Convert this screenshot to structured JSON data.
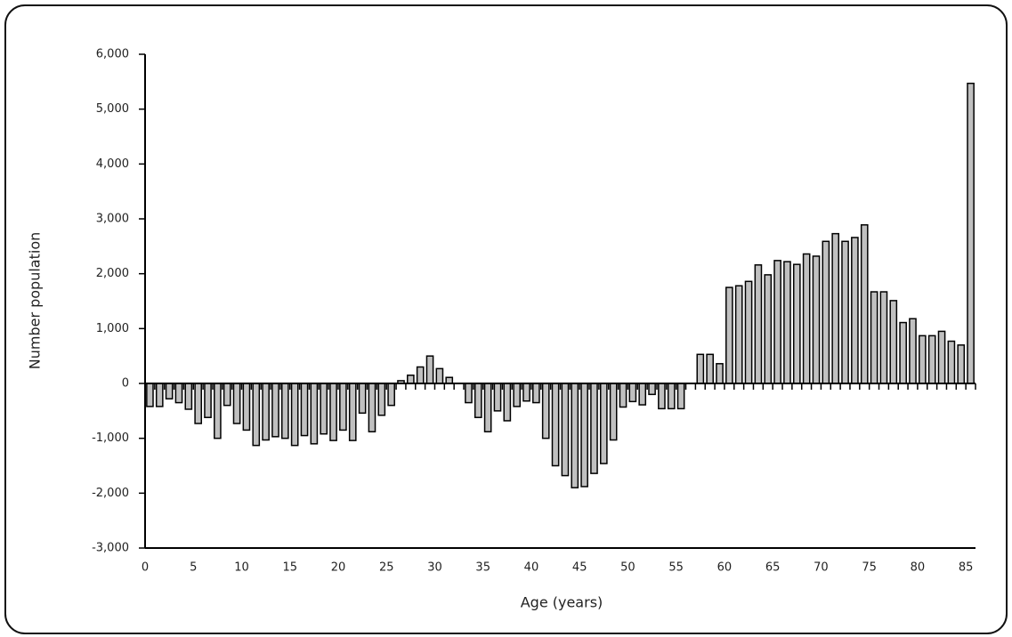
{
  "chart_data": {
    "type": "bar",
    "x_label": "Age (years)",
    "y_label": "Number population",
    "categories": [
      0,
      null,
      null,
      null,
      null,
      5,
      null,
      null,
      null,
      null,
      10,
      null,
      null,
      null,
      null,
      15,
      null,
      null,
      null,
      null,
      20,
      null,
      null,
      null,
      null,
      25,
      null,
      null,
      null,
      null,
      30,
      null,
      null,
      null,
      null,
      35,
      null,
      null,
      null,
      null,
      40,
      null,
      null,
      null,
      null,
      45,
      null,
      null,
      null,
      null,
      50,
      null,
      null,
      null,
      null,
      55,
      null,
      null,
      null,
      null,
      60,
      null,
      null,
      null,
      null,
      65,
      null,
      null,
      null,
      null,
      70,
      null,
      null,
      null,
      null,
      75,
      null,
      null,
      null,
      null,
      80,
      null,
      null,
      null,
      null,
      85
    ],
    "values": [
      -420,
      -420,
      -280,
      -350,
      -470,
      -730,
      -620,
      -1000,
      -400,
      -730,
      -850,
      -1130,
      -1030,
      -970,
      -1000,
      -1130,
      -950,
      -1100,
      -920,
      -1040,
      -850,
      -1040,
      -540,
      -880,
      -580,
      -400,
      50,
      150,
      300,
      500,
      270,
      110,
      0,
      -350,
      -620,
      -880,
      -500,
      -680,
      -420,
      -320,
      -350,
      -1000,
      -1500,
      -1680,
      -1900,
      -1880,
      -1640,
      -1460,
      -1030,
      -430,
      -330,
      -390,
      -200,
      -460,
      -460,
      -460,
      0,
      530,
      530,
      360,
      1750,
      1780,
      1860,
      2160,
      1980,
      2240,
      2220,
      2170,
      2360,
      2320,
      2590,
      2730,
      2590,
      2660,
      2890,
      1670,
      1670,
      1510,
      1110,
      1180,
      870,
      870,
      950,
      770,
      700,
      5470
    ],
    "color": "#c0c0c0",
    "ylim": [
      -3000,
      6000
    ],
    "yticks": [
      {
        "value": -3000,
        "label": "-3,000"
      },
      {
        "value": -2000,
        "label": "-2,000"
      },
      {
        "value": -1000,
        "label": "-1,000"
      },
      0,
      {
        "value": 1000,
        "label": "1,000"
      },
      {
        "value": 2000,
        "label": "2,000"
      },
      {
        "value": 3000,
        "label": "3,000"
      },
      {
        "value": 4000,
        "label": "4,000"
      },
      {
        "value": 5000,
        "label": "5,000"
      },
      {
        "value": 6000,
        "label": "6,000"
      }
    ],
    "grid": false
  }
}
